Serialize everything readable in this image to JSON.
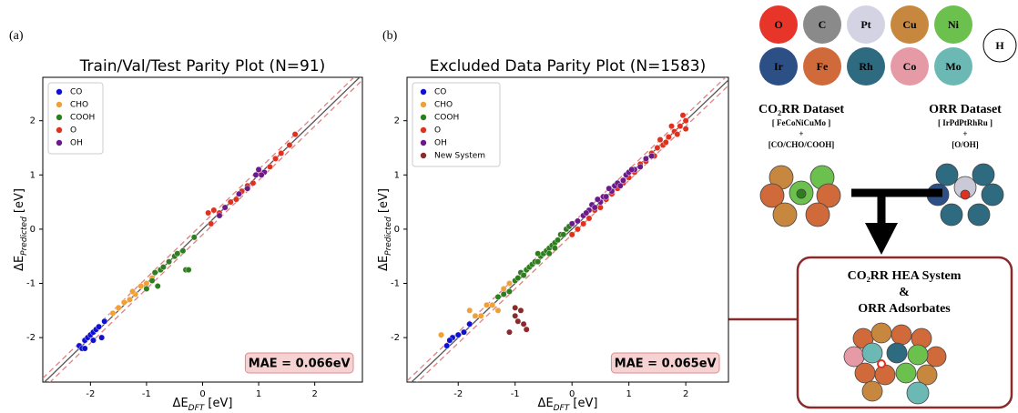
{
  "chart_data": [
    {
      "type": "scatter",
      "panel_label": "(a)",
      "title": "Train/Val/Test Parity Plot (N=91)",
      "xlabel": {
        "main": "ΔE",
        "sub": "DFT",
        "unit": " [eV]"
      },
      "ylabel": {
        "main": "ΔE",
        "sub": "Predicted",
        "unit": " [eV]"
      },
      "xlim": [
        -2.85,
        2.85
      ],
      "ylim": [
        -2.82,
        2.8
      ],
      "xticks": [
        -2,
        -1,
        0,
        1,
        2
      ],
      "yticks": [
        -2,
        -1,
        0,
        1,
        2
      ],
      "legend": "upper left",
      "annotation": "MAE = 0.066eV",
      "series": [
        {
          "name": "CO",
          "color": "#1010d0",
          "x": [
            -2.2,
            -2.15,
            -2.1,
            -2.05,
            -2.0,
            -1.95,
            -1.9,
            -1.85,
            -1.8,
            -1.75,
            -2.1,
            -1.95
          ],
          "y": [
            -2.15,
            -2.2,
            -2.05,
            -2.0,
            -1.95,
            -1.9,
            -1.85,
            -1.8,
            -2.0,
            -1.7,
            -2.2,
            -2.05
          ]
        },
        {
          "name": "CHO",
          "color": "#f0a035",
          "x": [
            -1.6,
            -1.5,
            -1.4,
            -1.3,
            -1.2,
            -1.1,
            -1.0,
            -0.9,
            -1.25
          ],
          "y": [
            -1.55,
            -1.45,
            -1.35,
            -1.3,
            -1.2,
            -1.05,
            -1.0,
            -0.9,
            -1.15
          ]
        },
        {
          "name": "COOH",
          "color": "#2e7d1e",
          "x": [
            -1.0,
            -0.9,
            -0.85,
            -0.8,
            -0.75,
            -0.7,
            -0.6,
            -0.5,
            -0.45,
            -0.35,
            -0.3,
            -0.25,
            -0.15
          ],
          "y": [
            -1.1,
            -0.95,
            -0.8,
            -1.05,
            -0.75,
            -0.7,
            -0.6,
            -0.5,
            -0.45,
            -0.4,
            -0.75,
            -0.75,
            -0.15
          ]
        },
        {
          "name": "O",
          "color": "#e0301e",
          "x": [
            0.1,
            0.2,
            0.3,
            0.5,
            0.6,
            0.7,
            0.8,
            0.9,
            1.0,
            1.2,
            1.3,
            1.4,
            1.55,
            1.65,
            0.15
          ],
          "y": [
            0.3,
            0.35,
            0.3,
            0.5,
            0.55,
            0.7,
            0.8,
            0.85,
            1.05,
            1.15,
            1.3,
            1.4,
            1.55,
            1.75,
            0.1
          ]
        },
        {
          "name": "OH",
          "color": "#6a1a8a",
          "x": [
            0.3,
            0.4,
            0.65,
            0.8,
            0.95,
            1.0,
            1.1,
            1.05
          ],
          "y": [
            0.25,
            0.4,
            0.65,
            0.75,
            1.0,
            1.1,
            1.05,
            1.0
          ]
        }
      ]
    },
    {
      "type": "scatter",
      "panel_label": "(b)",
      "title": "Excluded Data Parity Plot (N=1583)",
      "xlabel": {
        "main": "ΔE",
        "sub": "DFT",
        "unit": " [eV]"
      },
      "ylabel": {
        "main": "ΔE",
        "sub": "Predicted",
        "unit": " [eV]"
      },
      "xlim": [
        -2.9,
        2.75
      ],
      "ylim": [
        -2.82,
        2.8
      ],
      "xticks": [
        -2,
        -1,
        0,
        1,
        2
      ],
      "yticks": [
        -2,
        -1,
        0,
        1,
        2
      ],
      "legend": "upper left",
      "annotation": "MAE = 0.065eV",
      "series": [
        {
          "name": "CO",
          "color": "#1010d0",
          "x": [
            -2.2,
            -2.1,
            -2.0,
            -1.9,
            -1.8,
            -2.15
          ],
          "y": [
            -2.15,
            -2.0,
            -1.95,
            -1.9,
            -1.75,
            -2.05
          ]
        },
        {
          "name": "CHO",
          "color": "#f0a035",
          "x": [
            -2.3,
            -1.8,
            -1.7,
            -1.6,
            -1.5,
            -1.4,
            -1.3,
            -1.2,
            -1.1
          ],
          "y": [
            -1.95,
            -1.5,
            -1.6,
            -1.6,
            -1.4,
            -1.4,
            -1.5,
            -1.1,
            -1.0
          ]
        },
        {
          "name": "COOH",
          "color": "#2e7d1e",
          "x": [
            -1.3,
            -1.2,
            -1.1,
            -1.0,
            -0.95,
            -0.9,
            -0.85,
            -0.8,
            -0.75,
            -0.7,
            -0.65,
            -0.6,
            -0.55,
            -0.5,
            -0.45,
            -0.4,
            -0.35,
            -0.3,
            -0.25,
            -0.2,
            -0.15,
            -0.1,
            -0.05,
            -0.6,
            -0.4,
            -0.3
          ],
          "y": [
            -1.25,
            -1.2,
            -1.15,
            -0.95,
            -0.9,
            -0.8,
            -0.85,
            -0.75,
            -0.7,
            -0.65,
            -0.6,
            -0.6,
            -0.5,
            -0.45,
            -0.4,
            -0.35,
            -0.3,
            -0.25,
            -0.2,
            -0.1,
            -0.1,
            0.0,
            0.05,
            -0.45,
            -0.45,
            -0.35
          ]
        },
        {
          "name": "O",
          "color": "#e0301e",
          "x": [
            0.0,
            0.1,
            0.2,
            0.3,
            0.4,
            0.5,
            0.6,
            0.7,
            0.8,
            0.9,
            1.0,
            1.1,
            1.2,
            1.3,
            1.4,
            1.5,
            1.6,
            1.7,
            1.8,
            1.9,
            2.0,
            1.75,
            1.85,
            1.95,
            1.55,
            1.65,
            1.45,
            2.0
          ],
          "y": [
            -0.1,
            0.0,
            0.1,
            0.2,
            0.35,
            0.4,
            0.55,
            0.65,
            0.75,
            0.85,
            0.95,
            1.05,
            1.2,
            1.25,
            1.4,
            1.5,
            1.55,
            1.7,
            1.8,
            1.9,
            2.0,
            1.9,
            1.75,
            2.1,
            1.65,
            1.6,
            1.35,
            1.85
          ]
        },
        {
          "name": "OH",
          "color": "#6a1a8a",
          "x": [
            0.0,
            0.1,
            0.2,
            0.3,
            0.35,
            0.4,
            0.5,
            0.55,
            0.6,
            0.7,
            0.75,
            0.8,
            0.9,
            0.95,
            1.0,
            1.1,
            1.2,
            1.3,
            1.4,
            0.45,
            0.65,
            0.85,
            1.05,
            0.25
          ],
          "y": [
            0.1,
            0.15,
            0.25,
            0.35,
            0.45,
            0.4,
            0.5,
            0.6,
            0.6,
            0.7,
            0.8,
            0.85,
            0.9,
            1.0,
            1.05,
            1.1,
            1.15,
            1.3,
            1.35,
            0.55,
            0.75,
            0.8,
            1.1,
            0.3
          ]
        },
        {
          "name": "New System",
          "color": "#8b2a2a",
          "x": [
            -1.0,
            -0.9,
            -0.95,
            -0.85,
            -1.1,
            -0.8,
            -1.0
          ],
          "y": [
            -1.45,
            -1.5,
            -1.7,
            -1.75,
            -1.9,
            -1.85,
            -1.6
          ]
        }
      ]
    }
  ],
  "diagram": {
    "elements": [
      "O",
      "C",
      "Pt",
      "Cu",
      "Ni",
      "Ir",
      "Fe",
      "Rh",
      "Co",
      "Mo"
    ],
    "h_label": "H",
    "co2rr": {
      "title": "CO₂RR Dataset",
      "composition": "[ FeCoNiCuMo ]",
      "plus": "+",
      "adsorbates": "[CO/CHO/COOH]"
    },
    "orr": {
      "title": "ORR Dataset",
      "composition": "[ IrPdPtRhRu ]",
      "plus": "+",
      "adsorbates": "[O/OH]"
    },
    "box": {
      "line1": "CO₂RR HEA System",
      "line2": "&",
      "line3": "ORR Adsorbates"
    }
  }
}
